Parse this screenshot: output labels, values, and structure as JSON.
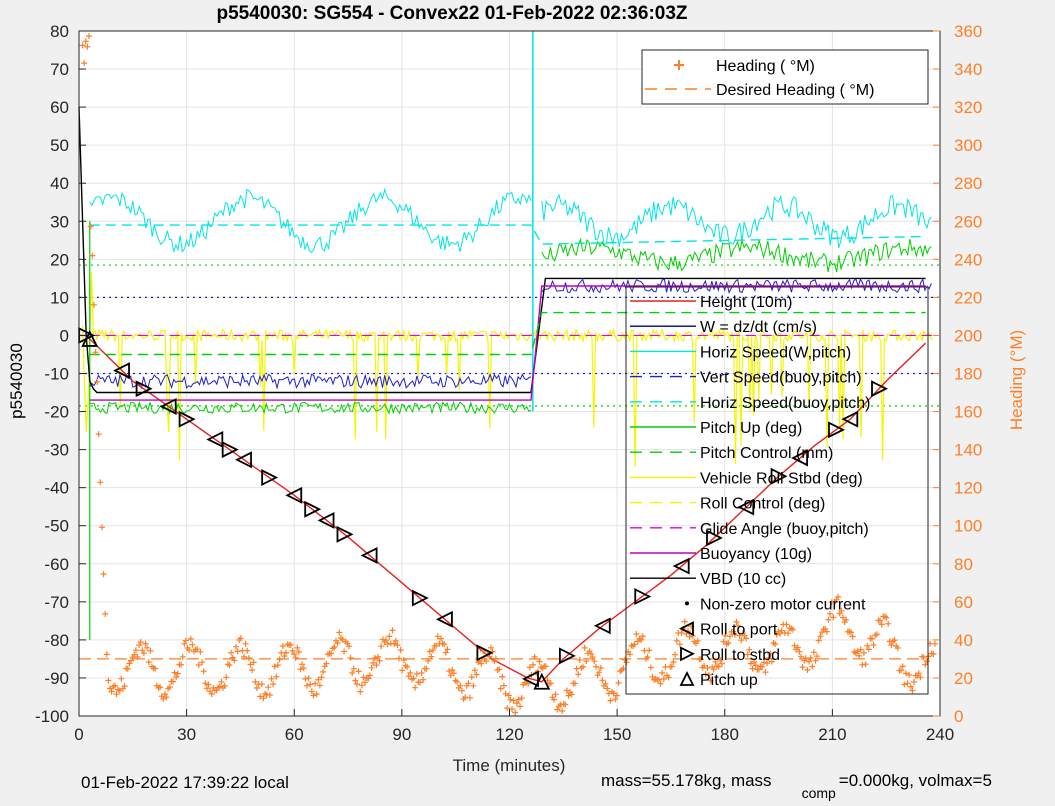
{
  "chart_data": {
    "type": "line",
    "title": "p5540030: SG554 - Convex22 01-Feb-2022 02:36:03Z",
    "xlabel": "Time (minutes)",
    "ylabel": "p5540030",
    "y2label": "Heading (°M)",
    "xlim": [
      0,
      240
    ],
    "ylim": [
      -100,
      80
    ],
    "y2lim": [
      0,
      360
    ],
    "xticks": [
      "0",
      "30",
      "60",
      "90",
      "120",
      "150",
      "180",
      "210",
      "240"
    ],
    "yticks": [
      "80",
      "70",
      "60",
      "50",
      "40",
      "30",
      "20",
      "10",
      "0",
      "-10",
      "-20",
      "-30",
      "-40",
      "-50",
      "-60",
      "-70",
      "-80",
      "-90",
      "-100"
    ],
    "y2ticks": [
      "360",
      "340",
      "320",
      "300",
      "280",
      "260",
      "240",
      "220",
      "200",
      "180",
      "160",
      "140",
      "120",
      "100",
      "80",
      "60",
      "40",
      "20",
      "0"
    ],
    "grid": true,
    "legend_top": {
      "placement": "top-right",
      "items": [
        {
          "label": "Heading (  °M)",
          "style": "plus",
          "color": "#ff7f27"
        },
        {
          "label": "Desired Heading (    °M)",
          "style": "dash",
          "color": "#ff7f27"
        }
      ]
    },
    "legend_main": {
      "placement": "right",
      "items": [
        {
          "label": "Height (10m)",
          "style": "solid",
          "color": "#e8201a"
        },
        {
          "label": "W = dz/dt (cm/s)",
          "style": "solid",
          "color": "#000080"
        },
        {
          "label": "Horiz Speed(W,pitch)",
          "style": "solid",
          "color": "#00e5e5"
        },
        {
          "label": "Vert Speed(buoy,pitch)",
          "style": "dash",
          "color": "#1f1fd0"
        },
        {
          "label": "Horiz Speed(buoy,pitch)",
          "style": "dash",
          "color": "#00e5e5"
        },
        {
          "label": "Pitch Up (deg)",
          "style": "solid",
          "color": "#00d000"
        },
        {
          "label": "Pitch Control (mm)",
          "style": "dash",
          "color": "#00d000"
        },
        {
          "label": "Vehicle Roll Stbd (deg)",
          "style": "solid",
          "color": "#f5f500"
        },
        {
          "label": "Roll Control (deg)",
          "style": "dash",
          "color": "#f5f500"
        },
        {
          "label": "Glide Angle (buoy,pitch)",
          "style": "dash",
          "color": "#e000e0"
        },
        {
          "label": "Buoyancy (10g)",
          "style": "solid",
          "color": "#c000c0"
        },
        {
          "label": "VBD (10 cc)",
          "style": "solid",
          "color": "#000000"
        },
        {
          "label": "Non-zero motor current",
          "style": "dot",
          "color": "#000000"
        },
        {
          "label": "Roll to port",
          "style": "tri-left",
          "color": "#000000"
        },
        {
          "label": "Roll to stbd",
          "style": "tri-right",
          "color": "#000000"
        },
        {
          "label": "Pitch up",
          "style": "tri-up",
          "color": "#000000"
        }
      ]
    },
    "reference_lines": [
      {
        "y": 18.5,
        "color": "#00d000"
      },
      {
        "y": -18.5,
        "color": "#00d000"
      },
      {
        "y": 10,
        "color": "#2020d0"
      },
      {
        "y": -10,
        "color": "#2020d0"
      }
    ],
    "series": [
      {
        "name": "Height (10m)",
        "color": "#e8201a",
        "x": [
          0,
          2,
          15,
          30,
          45,
          60,
          75,
          90,
          105,
          115,
          125,
          129,
          135,
          145,
          155,
          165,
          175,
          185,
          195,
          205,
          215,
          225,
          236
        ],
        "y": [
          0,
          0,
          -12,
          -22,
          -32,
          -42,
          -53,
          -65,
          -77,
          -85,
          -90,
          -91,
          -85,
          -77,
          -70,
          -63,
          -55,
          -46,
          -37,
          -29,
          -22,
          -12,
          -2
        ]
      },
      {
        "name": "VBD (10 cc)",
        "color": "#000000",
        "x": [
          0,
          1,
          2,
          3,
          4,
          5,
          126,
          128,
          130,
          180,
          236
        ],
        "y": [
          60,
          30,
          0,
          -12,
          -14,
          -15,
          -15,
          0,
          15,
          15,
          15
        ]
      },
      {
        "name": "Buoyancy (10g)",
        "color": "#c000c0",
        "x": [
          3,
          126,
          129,
          236
        ],
        "y": [
          -17,
          -17,
          13,
          13
        ]
      },
      {
        "name": "Horiz Speed(buoy,pitch)",
        "color": "#00e5e5",
        "x": [
          3,
          126,
          129,
          236
        ],
        "y": [
          29,
          29,
          24,
          26
        ]
      },
      {
        "name": "Pitch Control (mm)",
        "color": "#00d000",
        "x": [
          3,
          126,
          129,
          236
        ],
        "y": [
          -5,
          -5,
          6,
          6
        ]
      },
      {
        "name": "Desired Heading (    °M)",
        "color": "#ff7f27",
        "x": [
          0,
          236
        ],
        "y2": [
          30,
          30
        ]
      },
      {
        "name": "Heading (  °M)",
        "color": "#ff7f27",
        "x": [
          1,
          8,
          30,
          60,
          90,
          115,
          125,
          140,
          170,
          200,
          213,
          230,
          239
        ],
        "y2": [
          355,
          25,
          25,
          25,
          30,
          20,
          15,
          20,
          35,
          35,
          48,
          30,
          25
        ]
      }
    ],
    "markers": {
      "roll_to_port_x": [
        12,
        25,
        38,
        46,
        60,
        69,
        81,
        102,
        126,
        146,
        168,
        186,
        201,
        215
      ],
      "roll_to_stbd_x": [
        2,
        18,
        30,
        42,
        53,
        65,
        74,
        95,
        113,
        136,
        157,
        177,
        195,
        211,
        223
      ],
      "pitch_up_x": [
        3,
        129
      ]
    }
  },
  "footer": {
    "local_time": "01-Feb-2022 17:39:22 local",
    "mass": "mass=55.178kg, mass",
    "mass_sub": "comp",
    "mass_rest": "=0.000kg, volmax=5"
  }
}
